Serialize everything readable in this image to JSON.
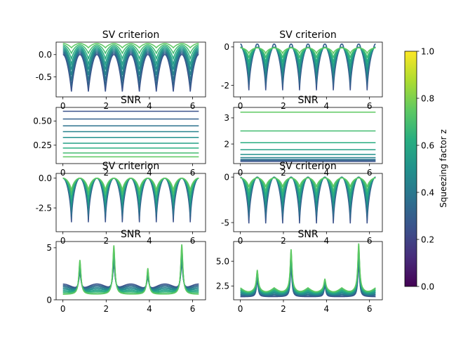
{
  "figure": {
    "colorbar": {
      "label": "Squeezing factor z",
      "range": [
        0,
        1
      ],
      "ticks": [
        "0.0",
        "0.2",
        "0.4",
        "0.6",
        "0.8",
        "1.0"
      ],
      "colormap": "viridis"
    }
  },
  "chart_data": [
    {
      "type": "line",
      "title": "SV criterion",
      "panel": "row1-left",
      "x_range": [
        0,
        6.283
      ],
      "xticks": [
        "0",
        "2",
        "4",
        "6"
      ],
      "yticks": [
        "-0.5",
        "0.0"
      ],
      "ylim": [
        -0.95,
        0.28
      ],
      "n_series": 9,
      "series_z_range": [
        0.25,
        0.75
      ],
      "shape": "periodic dips at x = 0.785, 2.356, 3.927, 5.498; minimum ranges from about -0.85 (low z) to about 0.15 (high z); maxima ≈ 0.0 to 0.25"
    },
    {
      "type": "line",
      "title": "SV criterion",
      "panel": "row1-right",
      "x_range": [
        0,
        6.283
      ],
      "xticks": [
        "0",
        "2",
        "4",
        "6"
      ],
      "yticks": [
        "-2",
        "0"
      ],
      "ylim": [
        -2.6,
        0.25
      ],
      "n_series": 9,
      "series_z_range": [
        0.25,
        0.75
      ],
      "shape": "periodic dips; minimum ranges from about -2.4 (low z) to about -0.3 (high z); small peaks near 0.0 between dips"
    },
    {
      "type": "line",
      "title": "SNR",
      "panel": "row2-left",
      "x_range": [
        0,
        6.283
      ],
      "xticks": [
        "0",
        "2",
        "4",
        "6"
      ],
      "yticks": [
        "0.25",
        "0.50"
      ],
      "ylim": [
        0.06,
        0.64
      ],
      "series": [
        {
          "z": 0.25,
          "value": 0.6
        },
        {
          "z": 0.31,
          "value": 0.52
        },
        {
          "z": 0.37,
          "value": 0.45
        },
        {
          "z": 0.44,
          "value": 0.39
        },
        {
          "z": 0.5,
          "value": 0.33
        },
        {
          "z": 0.56,
          "value": 0.27
        },
        {
          "z": 0.62,
          "value": 0.22
        },
        {
          "z": 0.69,
          "value": 0.17
        },
        {
          "z": 0.75,
          "value": 0.13
        }
      ]
    },
    {
      "type": "line",
      "title": "SNR",
      "panel": "row2-right",
      "x_range": [
        0,
        6.283
      ],
      "xticks": [
        "0",
        "2",
        "4",
        "6"
      ],
      "yticks": [
        "2",
        "3"
      ],
      "ylim": [
        1.25,
        3.4
      ],
      "series": [
        {
          "z": 0.25,
          "value": 1.33
        },
        {
          "z": 0.31,
          "value": 1.37
        },
        {
          "z": 0.37,
          "value": 1.41
        },
        {
          "z": 0.44,
          "value": 1.48
        },
        {
          "z": 0.5,
          "value": 1.6
        },
        {
          "z": 0.56,
          "value": 1.78
        },
        {
          "z": 0.62,
          "value": 2.05
        },
        {
          "z": 0.69,
          "value": 2.5
        },
        {
          "z": 0.75,
          "value": 3.22
        }
      ]
    },
    {
      "type": "line",
      "title": "SV criterion",
      "panel": "row3-left",
      "x_range": [
        0,
        6.283
      ],
      "xticks": [
        "0",
        "2",
        "4",
        "6"
      ],
      "yticks": [
        "-2.5",
        "0.0"
      ],
      "ylim": [
        -4.5,
        0.4
      ],
      "n_series": 9,
      "series_z_range": [
        0.25,
        0.75
      ],
      "shape": "periodic dips; minimum ranges from about -4.1 (low z) to about -1.2 (high z); maxima ≈ 0"
    },
    {
      "type": "line",
      "title": "SV criterion",
      "panel": "row3-right",
      "x_range": [
        0,
        6.283
      ],
      "xticks": [
        "0",
        "2",
        "4",
        "6"
      ],
      "yticks": [
        "-5",
        "0"
      ],
      "ylim": [
        -6.0,
        0.4
      ],
      "n_series": 9,
      "series_z_range": [
        0.25,
        0.75
      ],
      "shape": "periodic dips; minimum ranges from about -5.5 (low z) to about -1.2 (high z); small peaks near 0 between dips"
    },
    {
      "type": "line",
      "title": "SNR",
      "panel": "row4-left",
      "x_range": [
        0,
        6.283
      ],
      "xticks": [
        "0",
        "2",
        "4",
        "6"
      ],
      "yticks": [
        "0",
        "5"
      ],
      "ylim": [
        0,
        5.6
      ],
      "n_series": 9,
      "series_z_range": [
        0.25,
        0.75
      ],
      "shape": "baselines from about 1.25 (low z) to 0.5 (high z); sharp spikes near x = 0.785 (≈3.8), 2.356 (≈5.2), 3.927 (≈3.0), 5.498 (≈5.3)"
    },
    {
      "type": "line",
      "title": "SNR",
      "panel": "row4-right",
      "x_range": [
        0,
        6.283
      ],
      "xticks": [
        "0",
        "2",
        "4",
        "6"
      ],
      "yticks": [
        "2.5",
        "5.0"
      ],
      "ylim": [
        1.1,
        7.0
      ],
      "n_series": 9,
      "series_z_range": [
        0.25,
        0.75
      ],
      "shape": "baselines from about 1.4 to 2.3; sharp spikes near x = 0.785 (≈4.1), 2.356 (≈6.2), 3.927 (≈3.2), 5.498 (≈6.8)"
    }
  ]
}
